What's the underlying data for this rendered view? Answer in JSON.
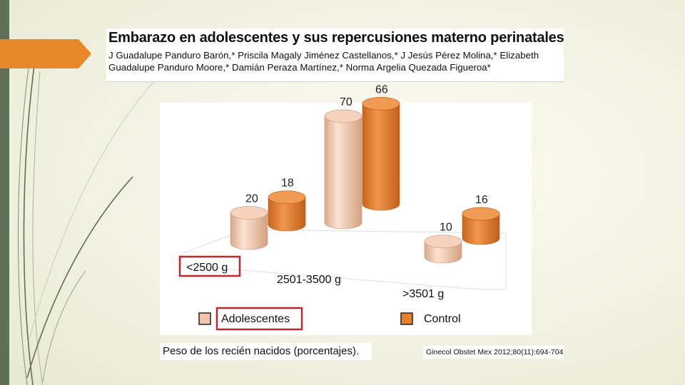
{
  "slide": {
    "colors": {
      "accent_bar": "#5f6f55",
      "flag": "#e8862a",
      "highlight_box": "#c0282d"
    }
  },
  "paper": {
    "title": "Embarazo en adolescentes y sus repercusiones materno perinatales",
    "authors": "J Guadalupe Panduro Barón,* Priscila Magaly Jiménez Castellanos,* J Jesús Pérez Molina,* Elizabeth Guadalupe Panduro Moore,* Damián Peraza Martínez,* Norma Argelia Quezada Figueroa*"
  },
  "caption": "Peso de los recién nacidos (porcentajes).",
  "citation": "Ginecol Obstet Mex 2012;80(11):694-704",
  "chart_data": {
    "type": "bar",
    "style": "3d-cylinder",
    "categories": [
      "<2500 g",
      "2501-3500 g",
      ">3501 g"
    ],
    "series": [
      {
        "name": "Adolescentes",
        "values": [
          20,
          70,
          10
        ],
        "color": "#f2c6a8"
      },
      {
        "name": "Control",
        "values": [
          18,
          66,
          16
        ],
        "color": "#e8812e"
      }
    ],
    "unit": "%",
    "legend_position": "bottom",
    "highlighted": [
      "<2500 g",
      "Adolescentes"
    ]
  }
}
